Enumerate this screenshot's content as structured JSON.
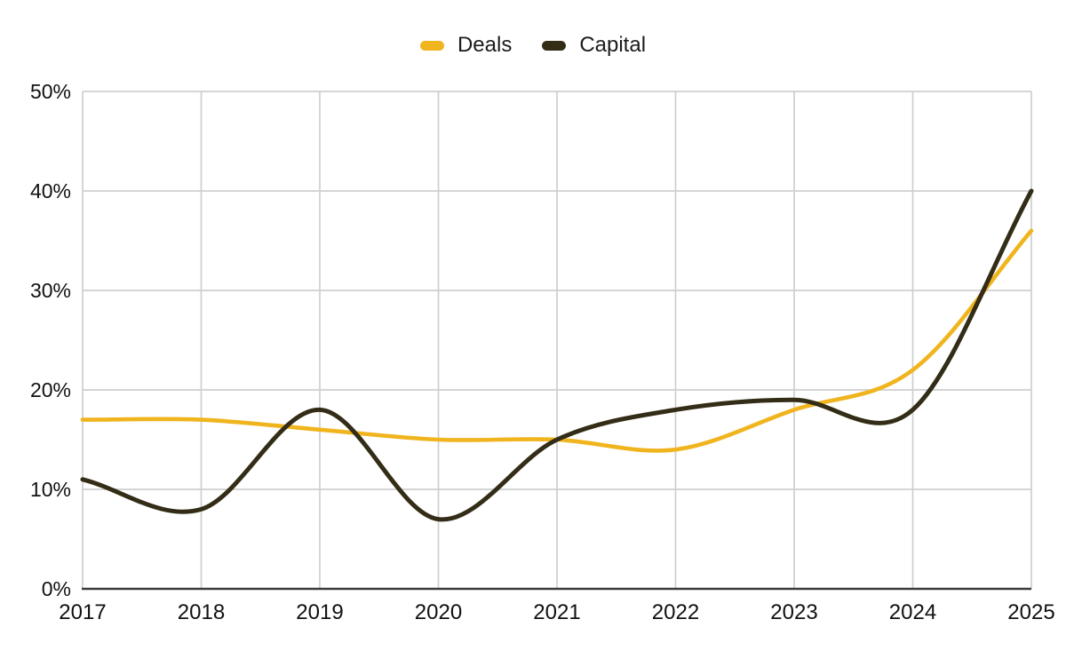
{
  "chart_data": {
    "type": "line",
    "title": "",
    "xlabel": "",
    "ylabel": "",
    "unit": "%",
    "x": [
      2017,
      2018,
      2019,
      2020,
      2021,
      2022,
      2023,
      2024,
      2025
    ],
    "x_tick_labels": [
      "2017",
      "2018",
      "2019",
      "2020",
      "2021",
      "2022",
      "2023",
      "2024",
      "2025"
    ],
    "series": [
      {
        "name": "Deals",
        "color": "#F0B41E",
        "values": [
          17,
          17,
          16,
          15,
          15,
          14,
          18,
          22,
          36
        ]
      },
      {
        "name": "Capital",
        "color": "#332C16",
        "values": [
          11,
          8,
          18,
          7,
          15,
          18,
          19,
          18,
          40
        ]
      }
    ],
    "ylim": [
      0,
      50
    ],
    "y_ticks": [
      0,
      10,
      20,
      30,
      40,
      50
    ],
    "y_tick_labels": [
      "0%",
      "10%",
      "20%",
      "30%",
      "40%",
      "50%"
    ],
    "grid": true,
    "curve": "smooth",
    "legend_position": "top",
    "colors": {
      "gridline": "#CFCFCF",
      "axis": "#3B3B3B",
      "tick_text": "#111111",
      "legend_text": "#1C1C1C",
      "background": "#FFFFFF"
    }
  }
}
